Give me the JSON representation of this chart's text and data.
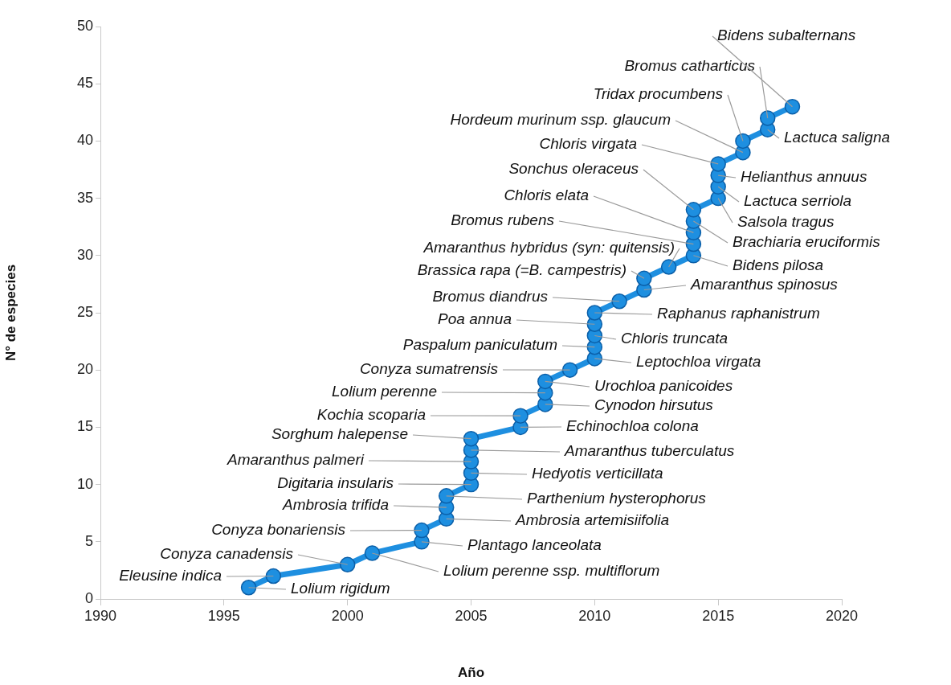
{
  "chart_data": {
    "type": "line",
    "xlabel": "Año",
    "ylabel": "N° de especies",
    "x": [
      1996,
      1997,
      2000,
      2001,
      2003,
      2003,
      2004,
      2004,
      2004,
      2005,
      2005,
      2005,
      2005,
      2005,
      2007,
      2007,
      2008,
      2008,
      2008,
      2009,
      2010,
      2010,
      2010,
      2010,
      2010,
      2011,
      2012,
      2012,
      2013,
      2014,
      2014,
      2014,
      2014,
      2014,
      2015,
      2015,
      2015,
      2015,
      2016,
      2016,
      2017,
      2017,
      2018
    ],
    "series": [
      {
        "color": "#1e8fe0",
        "values": [
          1,
          2,
          3,
          4,
          5,
          6,
          7,
          8,
          9,
          10,
          11,
          12,
          13,
          14,
          15,
          16,
          17,
          18,
          19,
          20,
          21,
          22,
          23,
          24,
          25,
          26,
          27,
          28,
          29,
          30,
          31,
          32,
          33,
          34,
          35,
          36,
          37,
          38,
          39,
          40,
          41,
          42,
          43
        ]
      }
    ],
    "xlim": [
      1990,
      2020
    ],
    "xticks": [
      1990,
      1995,
      2000,
      2005,
      2010,
      2015,
      2020
    ],
    "ylim": [
      0,
      50
    ],
    "yticks": [
      0,
      5,
      10,
      15,
      20,
      25,
      30,
      35,
      40,
      45,
      50
    ],
    "grid": false,
    "legend": false,
    "marker": "circle",
    "line_style": "solid",
    "annotations": [
      {
        "text": "Lolium rigidum",
        "x": 1996,
        "y": 1
      },
      {
        "text": "Eleusine indica",
        "x": 1997,
        "y": 2
      },
      {
        "text": "Conyza canadensis",
        "x": 2000,
        "y": 3
      },
      {
        "text": "Lolium perenne ssp. multiflorum",
        "x": 2001,
        "y": 4
      },
      {
        "text": "Plantago lanceolata",
        "x": 2003,
        "y": 5
      },
      {
        "text": "Conyza bonariensis",
        "x": 2003,
        "y": 6
      },
      {
        "text": "Ambrosia artemisiifolia",
        "x": 2004,
        "y": 7
      },
      {
        "text": "Ambrosia trifida",
        "x": 2004,
        "y": 8
      },
      {
        "text": "Parthenium hysterophorus",
        "x": 2004,
        "y": 9
      },
      {
        "text": "Digitaria insularis",
        "x": 2005,
        "y": 10
      },
      {
        "text": "Hedyotis verticillata",
        "x": 2005,
        "y": 11
      },
      {
        "text": "Amaranthus palmeri",
        "x": 2005,
        "y": 12
      },
      {
        "text": "Amaranthus tuberculatus",
        "x": 2005,
        "y": 13
      },
      {
        "text": "Sorghum halepense",
        "x": 2005,
        "y": 14
      },
      {
        "text": "Echinochloa colona",
        "x": 2007,
        "y": 15
      },
      {
        "text": "Kochia scoparia",
        "x": 2007,
        "y": 16
      },
      {
        "text": "Cynodon hirsutus",
        "x": 2008,
        "y": 17
      },
      {
        "text": "Lolium perenne",
        "x": 2008,
        "y": 18
      },
      {
        "text": "Urochloa panicoides",
        "x": 2008,
        "y": 19
      },
      {
        "text": "Conyza sumatrensis",
        "x": 2009,
        "y": 20
      },
      {
        "text": "Leptochloa virgata",
        "x": 2010,
        "y": 21
      },
      {
        "text": "Paspalum paniculatum",
        "x": 2010,
        "y": 22
      },
      {
        "text": "Chloris truncata",
        "x": 2010,
        "y": 23
      },
      {
        "text": "Poa annua",
        "x": 2010,
        "y": 24
      },
      {
        "text": "Raphanus raphanistrum",
        "x": 2010,
        "y": 25
      },
      {
        "text": "Bromus diandrus",
        "x": 2011,
        "y": 26
      },
      {
        "text": "Amaranthus spinosus",
        "x": 2012,
        "y": 27
      },
      {
        "text": "Brassica rapa (=B. campestris)",
        "x": 2012,
        "y": 28
      },
      {
        "text": "Amaranthus hybridus (syn: quitensis)",
        "x": 2013,
        "y": 29
      },
      {
        "text": "Bidens pilosa",
        "x": 2014,
        "y": 30
      },
      {
        "text": "Bromus rubens",
        "x": 2014,
        "y": 31
      },
      {
        "text": "Chloris elata",
        "x": 2014,
        "y": 32
      },
      {
        "text": "Brachiaria eruciformis",
        "x": 2014,
        "y": 33
      },
      {
        "text": "Sonchus oleraceus",
        "x": 2014,
        "y": 34
      },
      {
        "text": "Salsola tragus",
        "x": 2015,
        "y": 35
      },
      {
        "text": "Lactuca serriola",
        "x": 2015,
        "y": 36
      },
      {
        "text": "Helianthus annuus",
        "x": 2015,
        "y": 37
      },
      {
        "text": "Chloris virgata",
        "x": 2015,
        "y": 38
      },
      {
        "text": "Hordeum murinum ssp. glaucum",
        "x": 2016,
        "y": 39
      },
      {
        "text": "Tridax procumbens",
        "x": 2016,
        "y": 40
      },
      {
        "text": "Lactuca saligna",
        "x": 2017,
        "y": 41
      },
      {
        "text": "Bromus catharticus",
        "x": 2017,
        "y": 42
      },
      {
        "text": "Bidens subalternans",
        "x": 2018,
        "y": 43
      }
    ]
  }
}
